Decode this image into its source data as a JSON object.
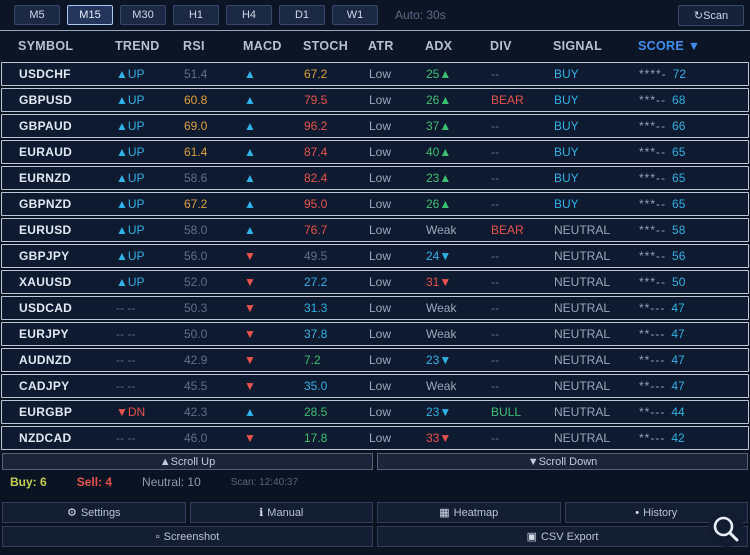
{
  "toolbar": {
    "timeframes": [
      "M5",
      "M15",
      "M30",
      "H1",
      "H4",
      "D1",
      "W1"
    ],
    "active": "M15",
    "auto_label": "Auto: 30s",
    "scan": {
      "icon": "↻",
      "label": "Scan"
    }
  },
  "table": {
    "headers": [
      "SYMBOL",
      "TREND",
      "RSI",
      "MACD",
      "STOCH",
      "ATR",
      "ADX",
      "DIV",
      "SIGNAL",
      "SCORE ▼"
    ],
    "rows": [
      {
        "symbol": "USDCHF",
        "trend": {
          "t": "▲UP",
          "c": "cyan"
        },
        "rsi": {
          "t": "51.4",
          "c": "gray"
        },
        "macd": {
          "t": "▲",
          "c": "cyan"
        },
        "stoch": {
          "t": "67.2",
          "c": "orange"
        },
        "atr": {
          "t": "Low",
          "c": "light"
        },
        "adx": {
          "t": "25▲",
          "c": "green"
        },
        "div": {
          "t": "--",
          "c": "gray"
        },
        "signal": {
          "t": "BUY",
          "c": "cyan"
        },
        "stars": "****-",
        "score": "72"
      },
      {
        "symbol": "GBPUSD",
        "trend": {
          "t": "▲UP",
          "c": "cyan"
        },
        "rsi": {
          "t": "60.8",
          "c": "orange"
        },
        "macd": {
          "t": "▲",
          "c": "cyan"
        },
        "stoch": {
          "t": "79.5",
          "c": "red"
        },
        "atr": {
          "t": "Low",
          "c": "light"
        },
        "adx": {
          "t": "26▲",
          "c": "green"
        },
        "div": {
          "t": "BEAR",
          "c": "red"
        },
        "signal": {
          "t": "BUY",
          "c": "cyan"
        },
        "stars": "***--",
        "score": "68"
      },
      {
        "symbol": "GBPAUD",
        "trend": {
          "t": "▲UP",
          "c": "cyan"
        },
        "rsi": {
          "t": "69.0",
          "c": "orange"
        },
        "macd": {
          "t": "▲",
          "c": "cyan"
        },
        "stoch": {
          "t": "96.2",
          "c": "red"
        },
        "atr": {
          "t": "Low",
          "c": "light"
        },
        "adx": {
          "t": "37▲",
          "c": "green"
        },
        "div": {
          "t": "--",
          "c": "gray"
        },
        "signal": {
          "t": "BUY",
          "c": "cyan"
        },
        "stars": "***--",
        "score": "66"
      },
      {
        "symbol": "EURAUD",
        "trend": {
          "t": "▲UP",
          "c": "cyan"
        },
        "rsi": {
          "t": "61.4",
          "c": "orange"
        },
        "macd": {
          "t": "▲",
          "c": "cyan"
        },
        "stoch": {
          "t": "87.4",
          "c": "red"
        },
        "atr": {
          "t": "Low",
          "c": "light"
        },
        "adx": {
          "t": "40▲",
          "c": "green"
        },
        "div": {
          "t": "--",
          "c": "gray"
        },
        "signal": {
          "t": "BUY",
          "c": "cyan"
        },
        "stars": "***--",
        "score": "65"
      },
      {
        "symbol": "EURNZD",
        "trend": {
          "t": "▲UP",
          "c": "cyan"
        },
        "rsi": {
          "t": "58.6",
          "c": "gray"
        },
        "macd": {
          "t": "▲",
          "c": "cyan"
        },
        "stoch": {
          "t": "82.4",
          "c": "red"
        },
        "atr": {
          "t": "Low",
          "c": "light"
        },
        "adx": {
          "t": "23▲",
          "c": "green"
        },
        "div": {
          "t": "--",
          "c": "gray"
        },
        "signal": {
          "t": "BUY",
          "c": "cyan"
        },
        "stars": "***--",
        "score": "65"
      },
      {
        "symbol": "GBPNZD",
        "trend": {
          "t": "▲UP",
          "c": "cyan"
        },
        "rsi": {
          "t": "67.2",
          "c": "orange"
        },
        "macd": {
          "t": "▲",
          "c": "cyan"
        },
        "stoch": {
          "t": "95.0",
          "c": "red"
        },
        "atr": {
          "t": "Low",
          "c": "light"
        },
        "adx": {
          "t": "26▲",
          "c": "green"
        },
        "div": {
          "t": "--",
          "c": "gray"
        },
        "signal": {
          "t": "BUY",
          "c": "cyan"
        },
        "stars": "***--",
        "score": "65"
      },
      {
        "symbol": "EURUSD",
        "trend": {
          "t": "▲UP",
          "c": "cyan"
        },
        "rsi": {
          "t": "58.0",
          "c": "gray"
        },
        "macd": {
          "t": "▲",
          "c": "cyan"
        },
        "stoch": {
          "t": "76.7",
          "c": "red"
        },
        "atr": {
          "t": "Low",
          "c": "light"
        },
        "adx": {
          "t": "Weak",
          "c": "light"
        },
        "div": {
          "t": "BEAR",
          "c": "red"
        },
        "signal": {
          "t": "NEUTRAL",
          "c": "light"
        },
        "stars": "***--",
        "score": "58"
      },
      {
        "symbol": "GBPJPY",
        "trend": {
          "t": "▲UP",
          "c": "cyan"
        },
        "rsi": {
          "t": "56.0",
          "c": "gray"
        },
        "macd": {
          "t": "▼",
          "c": "red"
        },
        "stoch": {
          "t": "49.5",
          "c": "gray"
        },
        "atr": {
          "t": "Low",
          "c": "light"
        },
        "adx": {
          "t": "24▼",
          "c": "cyan"
        },
        "div": {
          "t": "--",
          "c": "gray"
        },
        "signal": {
          "t": "NEUTRAL",
          "c": "light"
        },
        "stars": "***--",
        "score": "56"
      },
      {
        "symbol": "XAUUSD",
        "trend": {
          "t": "▲UP",
          "c": "cyan"
        },
        "rsi": {
          "t": "52.0",
          "c": "gray"
        },
        "macd": {
          "t": "▼",
          "c": "red"
        },
        "stoch": {
          "t": "27.2",
          "c": "cyan"
        },
        "atr": {
          "t": "Low",
          "c": "light"
        },
        "adx": {
          "t": "31▼",
          "c": "red"
        },
        "div": {
          "t": "--",
          "c": "gray"
        },
        "signal": {
          "t": "NEUTRAL",
          "c": "light"
        },
        "stars": "***--",
        "score": "50"
      },
      {
        "symbol": "USDCAD",
        "trend": {
          "t": "-- --",
          "c": "gray"
        },
        "rsi": {
          "t": "50.3",
          "c": "gray"
        },
        "macd": {
          "t": "▼",
          "c": "red"
        },
        "stoch": {
          "t": "31.3",
          "c": "cyan"
        },
        "atr": {
          "t": "Low",
          "c": "light"
        },
        "adx": {
          "t": "Weak",
          "c": "light"
        },
        "div": {
          "t": "--",
          "c": "gray"
        },
        "signal": {
          "t": "NEUTRAL",
          "c": "light"
        },
        "stars": "**---",
        "score": "47"
      },
      {
        "symbol": "EURJPY",
        "trend": {
          "t": "-- --",
          "c": "gray"
        },
        "rsi": {
          "t": "50.0",
          "c": "gray"
        },
        "macd": {
          "t": "▼",
          "c": "red"
        },
        "stoch": {
          "t": "37.8",
          "c": "cyan"
        },
        "atr": {
          "t": "Low",
          "c": "light"
        },
        "adx": {
          "t": "Weak",
          "c": "light"
        },
        "div": {
          "t": "--",
          "c": "gray"
        },
        "signal": {
          "t": "NEUTRAL",
          "c": "light"
        },
        "stars": "**---",
        "score": "47"
      },
      {
        "symbol": "AUDNZD",
        "trend": {
          "t": "-- --",
          "c": "gray"
        },
        "rsi": {
          "t": "42.9",
          "c": "gray"
        },
        "macd": {
          "t": "▼",
          "c": "red"
        },
        "stoch": {
          "t": "7.2",
          "c": "green"
        },
        "atr": {
          "t": "Low",
          "c": "light"
        },
        "adx": {
          "t": "23▼",
          "c": "cyan"
        },
        "div": {
          "t": "--",
          "c": "gray"
        },
        "signal": {
          "t": "NEUTRAL",
          "c": "light"
        },
        "stars": "**---",
        "score": "47"
      },
      {
        "symbol": "CADJPY",
        "trend": {
          "t": "-- --",
          "c": "gray"
        },
        "rsi": {
          "t": "45.5",
          "c": "gray"
        },
        "macd": {
          "t": "▼",
          "c": "red"
        },
        "stoch": {
          "t": "35.0",
          "c": "cyan"
        },
        "atr": {
          "t": "Low",
          "c": "light"
        },
        "adx": {
          "t": "Weak",
          "c": "light"
        },
        "div": {
          "t": "--",
          "c": "gray"
        },
        "signal": {
          "t": "NEUTRAL",
          "c": "light"
        },
        "stars": "**---",
        "score": "47"
      },
      {
        "symbol": "EURGBP",
        "trend": {
          "t": "▼DN",
          "c": "red"
        },
        "rsi": {
          "t": "42.3",
          "c": "gray"
        },
        "macd": {
          "t": "▲",
          "c": "cyan"
        },
        "stoch": {
          "t": "28.5",
          "c": "green"
        },
        "atr": {
          "t": "Low",
          "c": "light"
        },
        "adx": {
          "t": "23▼",
          "c": "cyan"
        },
        "div": {
          "t": "BULL",
          "c": "green"
        },
        "signal": {
          "t": "NEUTRAL",
          "c": "light"
        },
        "stars": "**---",
        "score": "44"
      },
      {
        "symbol": "NZDCAD",
        "trend": {
          "t": "-- --",
          "c": "gray"
        },
        "rsi": {
          "t": "46.0",
          "c": "gray"
        },
        "macd": {
          "t": "▼",
          "c": "red"
        },
        "stoch": {
          "t": "17.8",
          "c": "green"
        },
        "atr": {
          "t": "Low",
          "c": "light"
        },
        "adx": {
          "t": "33▼",
          "c": "red"
        },
        "div": {
          "t": "--",
          "c": "gray"
        },
        "signal": {
          "t": "NEUTRAL",
          "c": "light"
        },
        "stars": "**---",
        "score": "42"
      }
    ]
  },
  "scroll": {
    "up_label": "▲Scroll Up",
    "down_label": "▼Scroll Down"
  },
  "status": {
    "buy": "Buy: 6",
    "sell": "Sell: 4",
    "neutral": "Neutral: 10",
    "scan_time": "Scan: 12:40:37"
  },
  "actions": {
    "settings": {
      "icon": "⚙",
      "label": "Settings"
    },
    "manual": {
      "icon": "ℹ",
      "label": "Manual"
    },
    "heatmap": {
      "icon": "▦",
      "label": "Heatmap"
    },
    "history": {
      "icon": "•",
      "label": "History"
    },
    "screenshot": {
      "icon": "▫",
      "label": "Screenshot"
    },
    "csv": {
      "icon": "▣",
      "label": "CSV Export"
    }
  },
  "colors": {
    "accent_cyan": "#2fb2e5",
    "up_green": "#3cbf72",
    "down_red": "#e8534e",
    "warn_orange": "#dfa03c",
    "score_blue": "#3f8ef0",
    "buy_lime": "#c3d052",
    "row_border": "#bfc7d6",
    "background": "#0a1322"
  }
}
